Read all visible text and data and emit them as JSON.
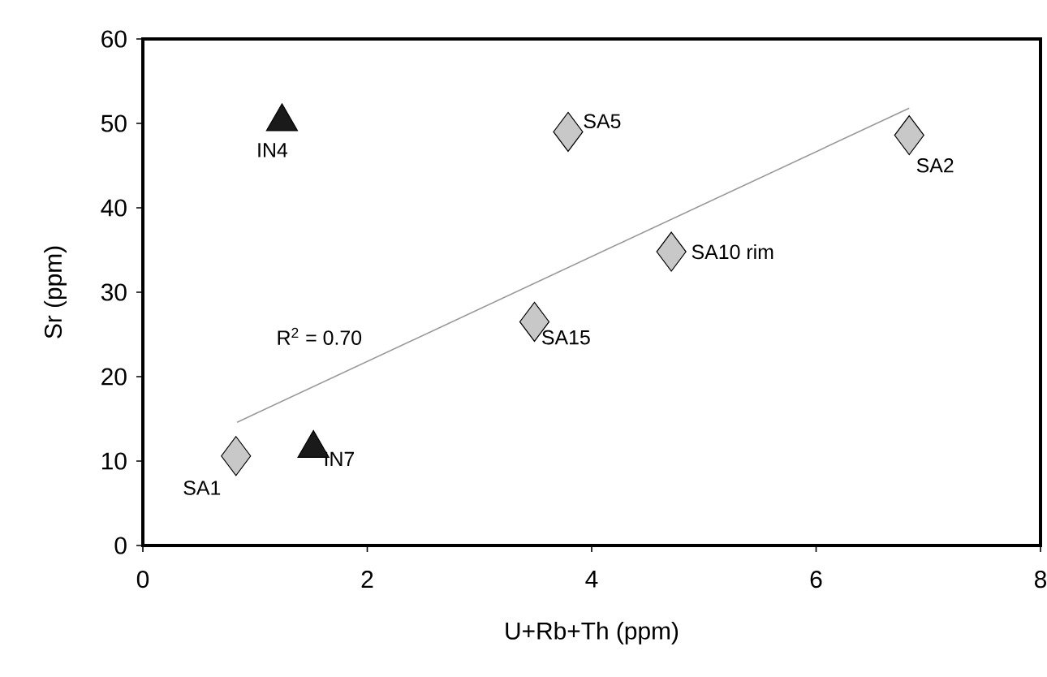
{
  "chart_data": {
    "type": "scatter",
    "xlabel": "U+Rb+Th (ppm)",
    "ylabel": "Sr (ppm)",
    "xlim": [
      0,
      8
    ],
    "xticks": [
      0,
      2,
      4,
      6,
      8
    ],
    "ylim": [
      0,
      60
    ],
    "yticks": [
      0,
      10,
      20,
      30,
      40,
      50,
      60
    ],
    "grid": false,
    "series": [
      {
        "color": "#c8c8c8",
        "marker": "diamond",
        "x": [
          0.83,
          3.79,
          3.49,
          4.71,
          6.83
        ],
        "values": [
          10.6,
          49.0,
          26.5,
          34.8,
          48.6
        ]
      },
      {
        "color": "#1a1a1a",
        "marker": "triangle",
        "x": [
          1.24,
          1.52
        ],
        "values": [
          50.2,
          11.5
        ]
      },
      {
        "type": "line",
        "color": "#999999",
        "marker": "none",
        "x": [
          0.84,
          6.83
        ],
        "values": [
          14.6,
          51.8
        ]
      }
    ],
    "annotations": [
      {
        "text": "SA1",
        "x": 0.83,
        "y": 10.6
      },
      {
        "text": "IN4",
        "x": 1.24,
        "y": 50.2
      },
      {
        "text": "IN7",
        "x": 1.52,
        "y": 11.5
      },
      {
        "text": "SA5",
        "x": 3.79,
        "y": 49.0
      },
      {
        "text": "SA15",
        "x": 3.49,
        "y": 26.5
      },
      {
        "text": "SA10 rim",
        "x": 4.71,
        "y": 34.8
      },
      {
        "text": "SA2",
        "x": 6.83,
        "y": 48.6
      },
      {
        "text": "R$^{2}$ = 0.70",
        "x": 2.0,
        "y": 21.8
      }
    ]
  }
}
